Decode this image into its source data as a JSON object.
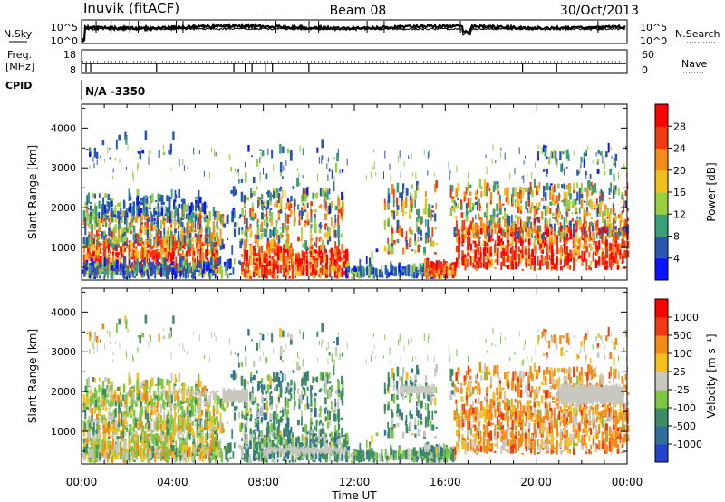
{
  "header": {
    "station": "Inuvik (fitACF)",
    "beam": "Beam 08",
    "date": "30/Oct/2013"
  },
  "side_labels": {
    "nsky": "N.Sky",
    "nsearch": "N.Search",
    "freq_line1": "Freq.",
    "freq_line2": "[MHz]",
    "nave": "Nave",
    "cpid": "CPID",
    "cpid_value": "N/A -3350"
  },
  "noise_axis": {
    "left_top": "10^5",
    "left_bottom": "10^0",
    "right_top": "10^5",
    "right_bottom": "10^0"
  },
  "freq_axis": {
    "left_top": "18",
    "left_bottom": "8",
    "right_top": "60",
    "right_bottom": "0"
  },
  "cpid_change_hours": [
    0.2,
    0.4,
    3.3,
    6.7,
    7.2,
    7.5,
    8.1,
    8.4,
    10.0,
    19.4,
    20.9
  ],
  "chart_data": [
    {
      "type": "heatmap",
      "name": "power",
      "ylabel": "Slant Range [km]",
      "xlabel": "",
      "x_range_hours": [
        0,
        24
      ],
      "ylim": [
        180,
        4600
      ],
      "yticks": [
        "1000",
        "2000",
        "3000",
        "4000"
      ],
      "colorbar_label": "Power [dB]",
      "colorbar_ticks": [
        "4",
        "8",
        "12",
        "16",
        "20",
        "24",
        "28"
      ],
      "colorbar_colors": [
        "#0a14ff",
        "#2a58b0",
        "#3aa07a",
        "#98d040",
        "#f0c022",
        "#f48a18",
        "#f23a12",
        "#ff0000"
      ],
      "color_scale_min": 0,
      "color_scale_max": 32
    },
    {
      "type": "heatmap",
      "name": "velocity",
      "ylabel": "Slant Range [km]",
      "xlabel": "Time UT",
      "x_range_hours": [
        0,
        24
      ],
      "xticks": [
        "00:00",
        "04:00",
        "08:00",
        "12:00",
        "16:00",
        "20:00",
        "00:00"
      ],
      "ylim": [
        180,
        4600
      ],
      "yticks": [
        "1000",
        "2000",
        "3000",
        "4000"
      ],
      "colorbar_label": "Velocity [m s⁻¹]",
      "colorbar_ticks": [
        "1000",
        "500",
        "100",
        "25",
        "-25",
        "-100",
        "-500",
        "-1000"
      ],
      "colorbar_colors": [
        "#2244cc",
        "#2f6f9c",
        "#3d8c64",
        "#7cc840",
        "#c8c8c0",
        "#f4c020",
        "#f48a18",
        "#f23a12",
        "#ff0000"
      ]
    }
  ]
}
